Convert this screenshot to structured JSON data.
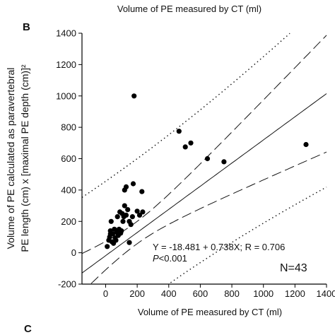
{
  "chart_data": {
    "type": "scatter",
    "title": "Volume of PE measured by CT (ml)",
    "panel_label": "B",
    "next_panel_label": "C",
    "xlabel": "Volume of PE measured by CT (ml)",
    "ylabel_lines": [
      "Volume of PE calculated as paravertebral",
      "PE length (cm) x [maximal PE depth (cm)]²"
    ],
    "xlim": [
      -150,
      1400
    ],
    "ylim": [
      -200,
      1400
    ],
    "x_ticks": [
      0,
      200,
      400,
      600,
      800,
      1000,
      1200,
      1400
    ],
    "y_ticks": [
      -200,
      0,
      200,
      400,
      600,
      800,
      1000,
      1200,
      1400
    ],
    "grid": false,
    "points": [
      [
        180,
        1000
      ],
      [
        465,
        775
      ],
      [
        505,
        675
      ],
      [
        540,
        700
      ],
      [
        645,
        600
      ],
      [
        750,
        580
      ],
      [
        1270,
        690
      ],
      [
        120,
        400
      ],
      [
        130,
        420
      ],
      [
        175,
        440
      ],
      [
        230,
        390
      ],
      [
        200,
        265
      ],
      [
        10,
        40
      ],
      [
        20,
        80
      ],
      [
        25,
        100
      ],
      [
        30,
        140
      ],
      [
        35,
        200
      ],
      [
        40,
        70
      ],
      [
        45,
        120
      ],
      [
        50,
        60
      ],
      [
        55,
        150
      ],
      [
        60,
        95
      ],
      [
        65,
        80
      ],
      [
        70,
        130
      ],
      [
        75,
        230
      ],
      [
        80,
        110
      ],
      [
        85,
        150
      ],
      [
        90,
        260
      ],
      [
        95,
        125
      ],
      [
        100,
        140
      ],
      [
        105,
        250
      ],
      [
        110,
        200
      ],
      [
        115,
        230
      ],
      [
        120,
        300
      ],
      [
        130,
        240
      ],
      [
        140,
        275
      ],
      [
        150,
        65
      ],
      [
        150,
        200
      ],
      [
        160,
        180
      ],
      [
        170,
        230
      ],
      [
        215,
        240
      ],
      [
        235,
        260
      ],
      [
        30,
        120
      ]
    ],
    "regression": {
      "intercept": -18.481,
      "slope": 0.738
    },
    "annotations": {
      "equation": "Y =  -18.481 + 0.738X; R = 0.706",
      "p_value_symbol": "P",
      "p_value_rest": "<0.001",
      "n": "N=43"
    },
    "colors": {
      "points": "#000000",
      "lines": "#111111"
    }
  }
}
